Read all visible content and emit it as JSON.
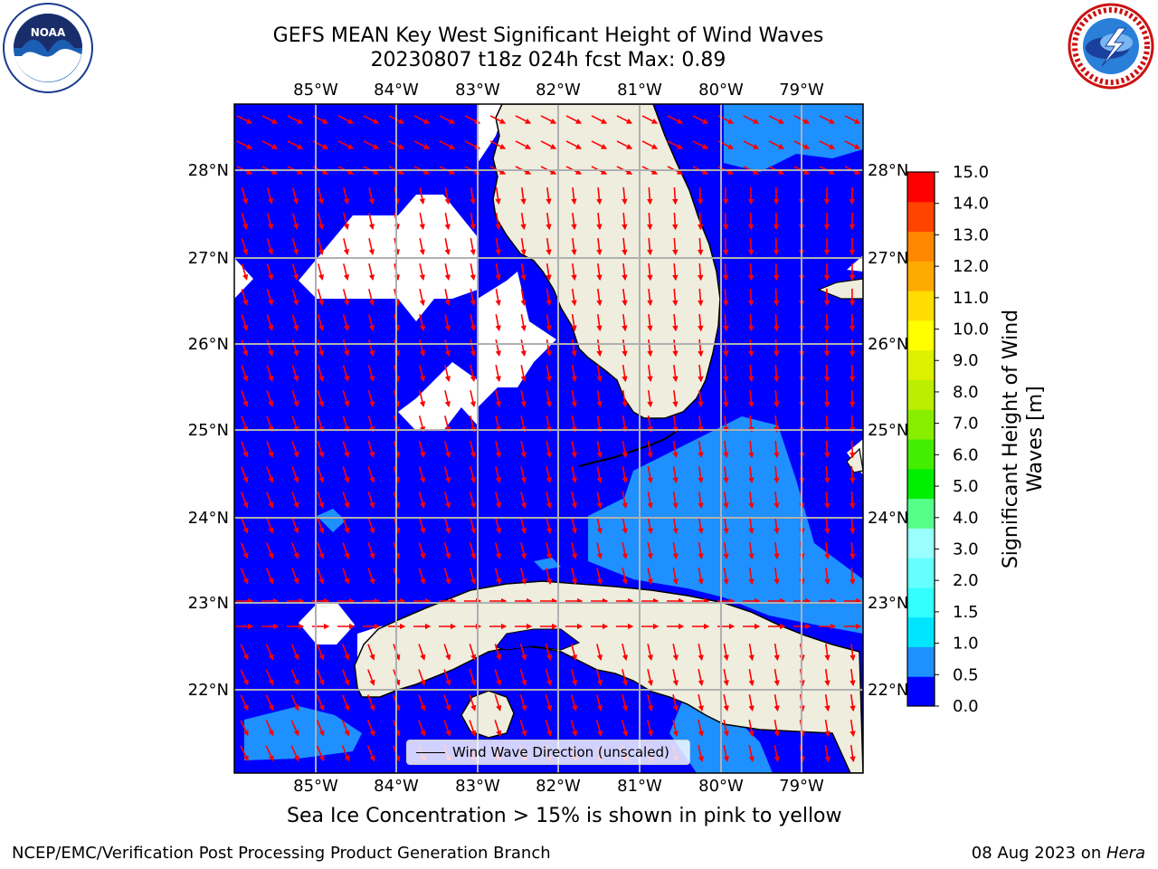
{
  "title": {
    "line1": "GEFS MEAN Key West Significant Height of Wind Waves",
    "line2": "20230807 t18z 024h fcst   Max: 0.89"
  },
  "map": {
    "lon_labels": [
      "85°W",
      "84°W",
      "83°W",
      "82°W",
      "81°W",
      "80°W",
      "79°W"
    ],
    "lat_labels": [
      "28°N",
      "27°N",
      "26°N",
      "25°N",
      "24°N",
      "23°N",
      "22°N"
    ],
    "colors": {
      "water_low": "#0000ff",
      "water_mid": "#1e90ff",
      "land": "#eeedde",
      "gridline": "#b0b0b0",
      "arrow": "#ff0000"
    },
    "legend_label": "Wind Wave Direction (unscaled)"
  },
  "colorbar": {
    "title_line1": "Significant Height of Wind",
    "title_line2": "Waves [m]",
    "tick_labels": [
      "0.0",
      "0.5",
      "1.0",
      "1.5",
      "2.0",
      "3.0",
      "4.0",
      "5.0",
      "6.0",
      "7.0",
      "8.0",
      "9.0",
      "10.0",
      "11.0",
      "12.0",
      "13.0",
      "14.0",
      "15.0"
    ],
    "colors": [
      "#0000ff",
      "#1e90ff",
      "#00e5ff",
      "#33ffff",
      "#66ffff",
      "#99ffff",
      "#55ff88",
      "#00ee00",
      "#44ee00",
      "#88ee00",
      "#bbee00",
      "#ddf000",
      "#ffff00",
      "#ffdd00",
      "#ffaa00",
      "#ff8800",
      "#ff4400",
      "#ff0000"
    ]
  },
  "footnote": "Sea Ice Concentration > 15% is shown in pink to yellow",
  "credits": {
    "left": "NCEP/EMC/Verification Post Processing Product Generation Branch",
    "right_date": "08 Aug 2023 on ",
    "right_host": "Hera"
  },
  "logos": {
    "left_text": "NOAA",
    "right_text": "NATIONAL WEATHER SERVICE"
  }
}
